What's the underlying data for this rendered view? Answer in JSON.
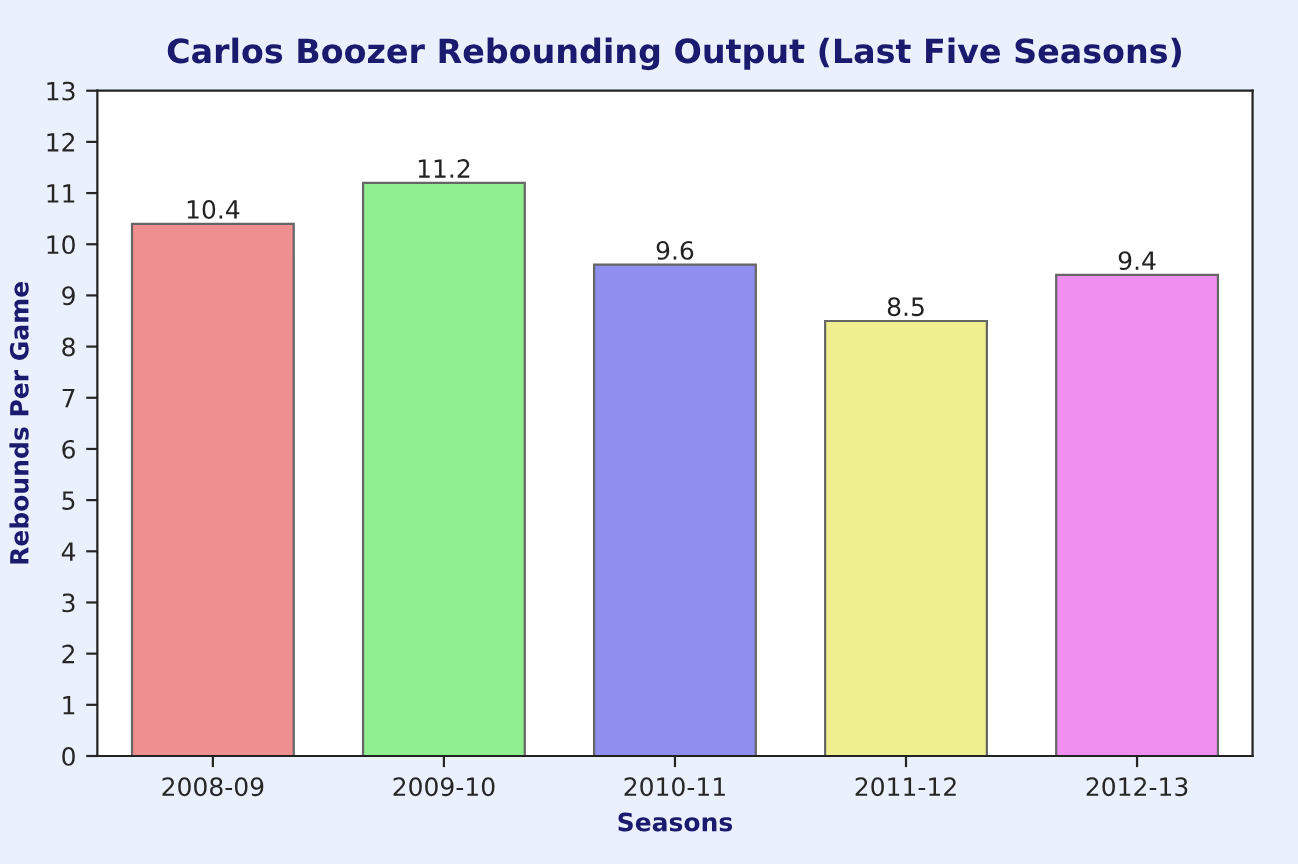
{
  "chart_data": {
    "type": "bar",
    "title": "Carlos Boozer Rebounding Output (Last Five Seasons)",
    "xlabel": "Seasons",
    "ylabel": "Rebounds Per Game",
    "categories": [
      "2008-09",
      "2009-10",
      "2010-11",
      "2011-12",
      "2012-13"
    ],
    "values": [
      10.4,
      11.2,
      9.6,
      8.5,
      9.4
    ],
    "colors": [
      "#ff7f7f",
      "#7fff7f",
      "#7f7fff",
      "#ffff7f",
      "#ff7fff"
    ],
    "ylim": [
      0,
      13
    ],
    "yticks": [
      0,
      1,
      2,
      3,
      4,
      5,
      6,
      7,
      8,
      9,
      10,
      11,
      12,
      13
    ],
    "data_labels": true,
    "grid": false,
    "legend": false
  }
}
